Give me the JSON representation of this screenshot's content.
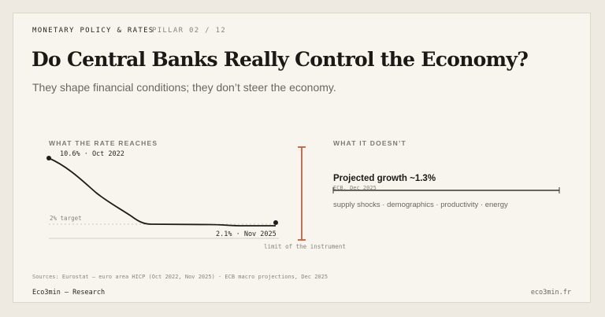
{
  "header": {
    "kicker": "MONETARY POLICY & RATES",
    "pillar": "PILLAR 02 / 12",
    "title": "Do Central Banks Really Control the Economy?",
    "subtitle": "They shape financial conditions; they don’t steer the economy."
  },
  "left_panel": {
    "label": "WHAT THE RATE REACHES",
    "peak_label": "10.6% · Oct 2022",
    "target_label": "2% target",
    "end_label": "2.1% · Nov 2025",
    "limit_label": "limit of the instrument"
  },
  "right_panel": {
    "label": "WHAT IT DOESN’T",
    "growth_title": "Projected growth ~1.3%",
    "growth_source": "ECB, Dec 2025",
    "drivers": "supply shocks · demographics · productivity · energy"
  },
  "colors": {
    "accent": "#c0613f",
    "ink": "#1f1c19",
    "muted": "#8a847b"
  },
  "footer": {
    "sources": "Sources: Eurostat — euro area HICP (Oct 2022, Nov 2025) · ECB macro projections, Dec 2025",
    "brand": "Eco3min — Research",
    "url": "eco3min.fr"
  }
}
